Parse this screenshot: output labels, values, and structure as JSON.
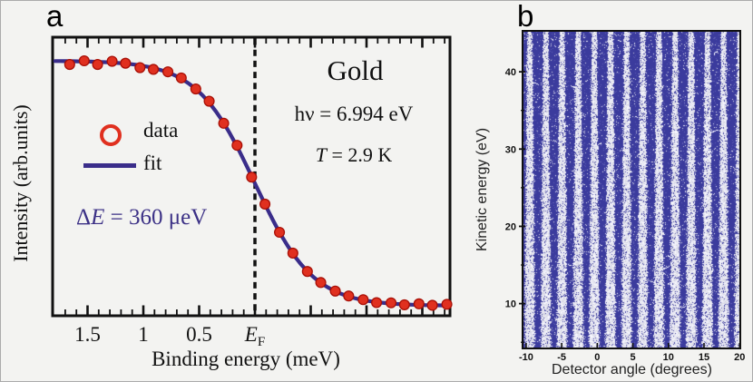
{
  "figure": {
    "panel_a": {
      "label": "a",
      "title": "Gold",
      "photon_energy": "hν = 6.994 eV",
      "temperature": {
        "symbol": "T",
        "rest": " = 2.9 K"
      },
      "resolution": {
        "sym1": "Δ",
        "sym2": "E",
        "rest": " = 360 μeV"
      },
      "legend": {
        "data_label": "data",
        "fit_label": "fit"
      },
      "xlabel": "Binding energy (meV)",
      "ylabel": "Intensity (arb.units)"
    },
    "panel_b": {
      "label": "b",
      "xlabel": "Detector angle (degrees)",
      "ylabel": "Kinetic energy (eV)"
    },
    "colors": {
      "data_marker": "#e0301f",
      "data_marker_edge": "#a80f06",
      "fit_line": "#3a2d8a",
      "annotation_blue": "#3c3186",
      "map_background": "#3b3b9d",
      "axis": "#111111"
    }
  },
  "chart_data": [
    {
      "type": "scatter",
      "title": "Gold",
      "xlabel": "Binding energy (meV)",
      "ylabel": "Intensity (arb.units)",
      "x_axis_reversed": true,
      "x_range": [
        1.81,
        -1.75
      ],
      "x_major_tick_step": 0.5,
      "x_minor_tick_step": 0.1,
      "x_ticks": [
        {
          "v": 1.5,
          "label": "1.5"
        },
        {
          "v": 1.0,
          "label": "1"
        },
        {
          "v": 0.5,
          "label": "0.5"
        },
        {
          "v": 0.0,
          "label": "E",
          "sub": "F",
          "italic": true
        }
      ],
      "fermi_level_line_x": 0,
      "annotations": [
        "Gold",
        "hν = 6.994 eV",
        "T = 2.9 K",
        "ΔE = 360 μeV"
      ],
      "legend": [
        "data",
        "fit"
      ],
      "fit_model": {
        "name": "fermi_function",
        "kT_meV": 0.26,
        "amplitude": 1.0
      },
      "series": [
        {
          "name": "data",
          "points": [
            [
              1.66,
              0.985
            ],
            [
              1.53,
              1.0
            ],
            [
              1.41,
              0.985
            ],
            [
              1.28,
              0.998
            ],
            [
              1.16,
              0.99
            ],
            [
              1.03,
              0.972
            ],
            [
              0.91,
              0.965
            ],
            [
              0.78,
              0.955
            ],
            [
              0.66,
              0.93
            ],
            [
              0.53,
              0.885
            ],
            [
              0.41,
              0.835
            ],
            [
              0.28,
              0.745
            ],
            [
              0.16,
              0.655
            ],
            [
              0.03,
              0.525
            ],
            [
              -0.09,
              0.415
            ],
            [
              -0.22,
              0.3
            ],
            [
              -0.34,
              0.215
            ],
            [
              -0.47,
              0.14
            ],
            [
              -0.59,
              0.095
            ],
            [
              -0.72,
              0.06
            ],
            [
              -0.84,
              0.04
            ],
            [
              -0.97,
              0.025
            ],
            [
              -1.09,
              0.013
            ],
            [
              -1.22,
              0.012
            ],
            [
              -1.34,
              0.004
            ],
            [
              -1.47,
              0.008
            ],
            [
              -1.59,
              0.002
            ],
            [
              -1.72,
              0.006
            ]
          ]
        }
      ]
    },
    {
      "type": "heatmap",
      "xlabel": "Detector angle (degrees)",
      "ylabel": "Kinetic energy (eV)",
      "x_range": [
        -10.5,
        20.1
      ],
      "y_range": [
        4.2,
        45.3
      ],
      "x_ticks": [
        -10,
        -5,
        0,
        5,
        10,
        15,
        20
      ],
      "y_ticks": [
        10,
        20,
        30,
        40
      ],
      "y_minor_tick_step": 5,
      "pattern": {
        "description": "vertical detector-slit stripes, white on blue, widening toward low kinetic energy",
        "period_deg": 2.27,
        "phase_deg": -9.55,
        "width_frac_top": 0.32,
        "width_frac_bottom": 0.62
      },
      "noise_seed": 987654321
    }
  ]
}
